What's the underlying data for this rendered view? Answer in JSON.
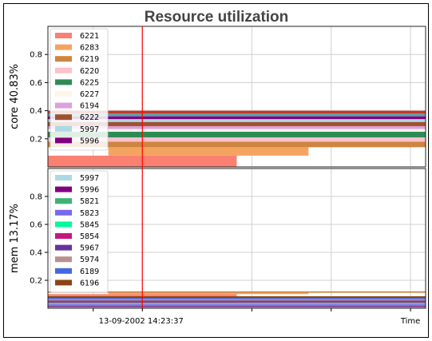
{
  "chart_data": {
    "type": "bar",
    "title": "Resource utilization",
    "x_axis": {
      "label": "Time",
      "marker_label": "13-09-2002 14:23:37",
      "marker_color": "#ff0000"
    },
    "panels": [
      {
        "id": "core",
        "ylabel": "core 40.83%",
        "ylim": [
          0,
          1.0
        ],
        "yticks": [
          "0.2",
          "0.4",
          "0.6",
          "0.8"
        ],
        "legend": [
          {
            "name": "6221",
            "color": "#fa8072"
          },
          {
            "name": "6283",
            "color": "#f4a460"
          },
          {
            "name": "6219",
            "color": "#cd853f"
          },
          {
            "name": "6220",
            "color": "#ffc0cb"
          },
          {
            "name": "6225",
            "color": "#2e8b57"
          },
          {
            "name": "6227",
            "color": "#fdf5e6"
          },
          {
            "name": "6194",
            "color": "#dda0dd"
          },
          {
            "name": "6222",
            "color": "#a0522d"
          },
          {
            "name": "5997",
            "color": "#add8e6"
          },
          {
            "name": "5996",
            "color": "#800080"
          }
        ],
        "stacks": [
          {
            "name": "6221",
            "color": "#fa8072",
            "start": 0.0,
            "end": 0.5,
            "value": 0.08
          },
          {
            "name": "6283",
            "color": "#f4a460",
            "start": 0.16,
            "end": 0.69,
            "value": 0.06
          },
          {
            "name": "6219",
            "color": "#cd853f",
            "start": 0.0,
            "end": 1.0,
            "value": 0.04
          },
          {
            "name": "6220",
            "color": "#ffc0cb",
            "start": 0.0,
            "end": 1.0,
            "value": 0.03
          },
          {
            "name": "6225",
            "color": "#2e8b57",
            "start": 0.0,
            "end": 1.0,
            "value": 0.04
          },
          {
            "name": "6227",
            "color": "#fdf5e6",
            "start": 0.0,
            "end": 1.0,
            "value": 0.02
          },
          {
            "name": "6194",
            "color": "#dda0dd",
            "start": 0.0,
            "end": 1.0,
            "value": 0.02
          },
          {
            "name": "6222",
            "color": "#a0522d",
            "start": 0.0,
            "end": 1.0,
            "value": 0.03
          },
          {
            "name": "5997",
            "color": "#add8e6",
            "start": 0.0,
            "end": 1.0,
            "value": 0.02
          },
          {
            "name": "5996",
            "color": "#800080",
            "start": 0.0,
            "end": 1.0,
            "value": 0.02
          },
          {
            "name": "5821",
            "color": "#5f9ea0",
            "start": 0.0,
            "end": 1.0,
            "value": 0.02
          },
          {
            "name": "5823",
            "color": "#c0392b",
            "start": 0.0,
            "end": 1.0,
            "value": 0.02
          }
        ]
      },
      {
        "id": "mem",
        "ylabel": "mem 13.17%",
        "ylim": [
          0,
          1.0
        ],
        "yticks": [
          "0.2",
          "0.4",
          "0.6",
          "0.8"
        ],
        "legend": [
          {
            "name": "5997",
            "color": "#add8e6"
          },
          {
            "name": "5996",
            "color": "#800080"
          },
          {
            "name": "5821",
            "color": "#3cb371"
          },
          {
            "name": "5823",
            "color": "#7b68ee"
          },
          {
            "name": "5845",
            "color": "#00fa9a"
          },
          {
            "name": "5854",
            "color": "#c71585"
          },
          {
            "name": "5967",
            "color": "#663399"
          },
          {
            "name": "5974",
            "color": "#bc8f8f"
          },
          {
            "name": "6189",
            "color": "#4169e1"
          },
          {
            "name": "6196",
            "color": "#8b4513"
          }
        ],
        "stacks": [
          {
            "name": "5997",
            "color": "#add8e6",
            "start": 0.0,
            "end": 1.0,
            "value": 0.008
          },
          {
            "name": "5996",
            "color": "#800080",
            "start": 0.0,
            "end": 1.0,
            "value": 0.008
          },
          {
            "name": "5821",
            "color": "#3cb371",
            "start": 0.0,
            "end": 1.0,
            "value": 0.008
          },
          {
            "name": "5823",
            "color": "#7b68ee",
            "start": 0.0,
            "end": 1.0,
            "value": 0.008
          },
          {
            "name": "5845",
            "color": "#00fa9a",
            "start": 0.0,
            "end": 1.0,
            "value": 0.008
          },
          {
            "name": "5854",
            "color": "#c71585",
            "start": 0.0,
            "end": 1.0,
            "value": 0.008
          },
          {
            "name": "5967",
            "color": "#663399",
            "start": 0.0,
            "end": 1.0,
            "value": 0.008
          },
          {
            "name": "5974",
            "color": "#bc8f8f",
            "start": 0.0,
            "end": 1.0,
            "value": 0.01
          },
          {
            "name": "6189",
            "color": "#4169e1",
            "start": 0.0,
            "end": 1.0,
            "value": 0.008
          },
          {
            "name": "6196",
            "color": "#8b4513",
            "start": 0.0,
            "end": 1.0,
            "value": 0.012
          },
          {
            "name": "6221",
            "color": "#fa8072",
            "start": 0.0,
            "end": 0.5,
            "value": 0.015
          },
          {
            "name": "6283",
            "color": "#f4a460",
            "start": 0.16,
            "end": 0.69,
            "value": 0.01
          },
          {
            "name": "6219",
            "color": "#cd853f",
            "start": 0.0,
            "end": 1.0,
            "value": 0.01
          }
        ]
      }
    ]
  }
}
